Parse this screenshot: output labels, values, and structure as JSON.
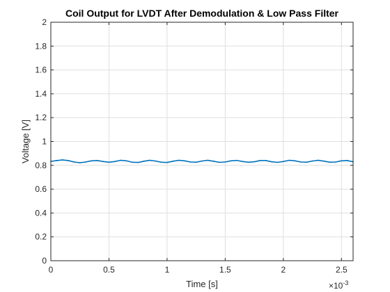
{
  "chart_data": {
    "type": "line",
    "title": "Coil Output for LVDT After Demodulation & Low Pass Filter",
    "xlabel": "Time [s]",
    "ylabel": "Voltage [V]",
    "x_exponent_label": "×10",
    "x_exponent_power": "-3",
    "xlim": [
      0,
      0.0026
    ],
    "ylim": [
      0,
      2
    ],
    "grid": true,
    "x_ticks": [
      0,
      0.0005,
      0.001,
      0.0015,
      0.002,
      0.0025
    ],
    "x_tick_labels": [
      "0",
      "0.5",
      "1",
      "1.5",
      "2",
      "2.5"
    ],
    "y_ticks": [
      0,
      0.2,
      0.4,
      0.6,
      0.8,
      1,
      1.2,
      1.4,
      1.6,
      1.8,
      2
    ],
    "y_tick_labels": [
      "0",
      "0.2",
      "0.4",
      "0.6",
      "0.8",
      "1",
      "1.2",
      "1.4",
      "1.6",
      "1.8",
      "2"
    ],
    "series": [
      {
        "color": "#0072bd",
        "x": [
          0,
          5e-05,
          0.0001,
          0.00015,
          0.0002,
          0.00025,
          0.0003,
          0.00035,
          0.0004,
          0.00045,
          0.0005,
          0.00055,
          0.0006,
          0.00065,
          0.0007,
          0.00075,
          0.0008,
          0.00085,
          0.0009,
          0.00095,
          0.001,
          0.00105,
          0.0011,
          0.00115,
          0.0012,
          0.00125,
          0.0013,
          0.00135,
          0.0014,
          0.00145,
          0.0015,
          0.00155,
          0.0016,
          0.00165,
          0.0017,
          0.00175,
          0.0018,
          0.00185,
          0.0019,
          0.00195,
          0.002,
          0.00205,
          0.0021,
          0.00215,
          0.0022,
          0.00225,
          0.0023,
          0.00235,
          0.0024,
          0.00245,
          0.0025,
          0.00255,
          0.0026
        ],
        "y": [
          0.833,
          0.84,
          0.845,
          0.84,
          0.828,
          0.822,
          0.828,
          0.838,
          0.84,
          0.832,
          0.826,
          0.832,
          0.842,
          0.838,
          0.826,
          0.824,
          0.834,
          0.842,
          0.836,
          0.826,
          0.824,
          0.834,
          0.842,
          0.838,
          0.828,
          0.826,
          0.836,
          0.842,
          0.834,
          0.825,
          0.828,
          0.838,
          0.841,
          0.832,
          0.826,
          0.83,
          0.84,
          0.84,
          0.83,
          0.825,
          0.832,
          0.842,
          0.838,
          0.828,
          0.826,
          0.836,
          0.842,
          0.835,
          0.826,
          0.828,
          0.838,
          0.84,
          0.83
        ]
      }
    ]
  }
}
